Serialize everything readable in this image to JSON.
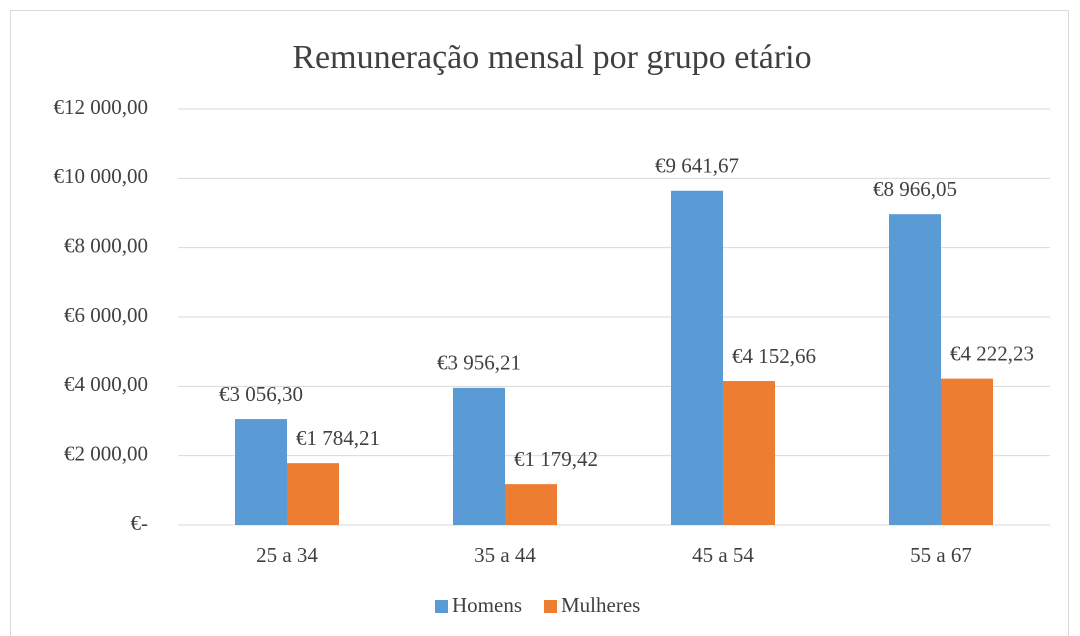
{
  "chart_data": {
    "type": "bar",
    "title": "Remuneração mensal por grupo etário",
    "categories": [
      "25 a 34",
      "35 a 44",
      "45 a 54",
      "55 a 67"
    ],
    "series": [
      {
        "name": "Homens",
        "color": "#5b9bd5",
        "values": [
          3056.3,
          3956.21,
          9641.67,
          8966.05
        ],
        "value_labels": [
          "€3 056,30",
          "€3 956,21",
          "€9 641,67",
          "€8 966,05"
        ]
      },
      {
        "name": "Mulheres",
        "color": "#ed7d31",
        "values": [
          1784.21,
          1179.42,
          4152.66,
          4222.23
        ],
        "value_labels": [
          "€1 784,21",
          "€1 179,42",
          "€4 152,66",
          "€4 222,23"
        ]
      }
    ],
    "ylim": [
      0,
      12000
    ],
    "yticks": [
      {
        "value": 0,
        "label": "€-"
      },
      {
        "value": 2000,
        "label": "€2 000,00"
      },
      {
        "value": 4000,
        "label": "€4 000,00"
      },
      {
        "value": 6000,
        "label": "€6 000,00"
      },
      {
        "value": 8000,
        "label": "€8 000,00"
      },
      {
        "value": 10000,
        "label": "€10 000,00"
      },
      {
        "value": 12000,
        "label": "€12 000,00"
      }
    ],
    "grid": true,
    "legend": "bottom"
  }
}
